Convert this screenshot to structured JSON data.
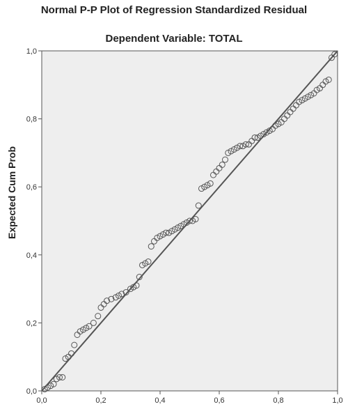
{
  "chart_data": {
    "type": "scatter",
    "title": "Normal P-P Plot of Regression Standardized Residual",
    "subtitle": "Dependent Variable: TOTAL",
    "ylabel": "Expected Cum Prob",
    "xlabel": "",
    "xlim": [
      0,
      1
    ],
    "ylim": [
      0,
      1
    ],
    "x_ticks": [
      "0,0",
      "0,2",
      "0,4",
      "0,6",
      "0,8",
      "1,0"
    ],
    "y_ticks": [
      "0,0",
      "0,2",
      "0,4",
      "0,6",
      "0,8",
      "1,0"
    ],
    "grid": false,
    "reference_line": {
      "from": [
        0,
        0
      ],
      "to": [
        1,
        1
      ]
    },
    "colors": {
      "plot_background": "#eeeeee",
      "marker": "#555555",
      "line": "#555555"
    },
    "series": [
      {
        "values": [
          [
            0.01,
            0.005
          ],
          [
            0.02,
            0.01
          ],
          [
            0.03,
            0.015
          ],
          [
            0.04,
            0.02
          ],
          [
            0.05,
            0.035
          ],
          [
            0.06,
            0.04
          ],
          [
            0.07,
            0.04
          ],
          [
            0.08,
            0.095
          ],
          [
            0.09,
            0.1
          ],
          [
            0.1,
            0.11
          ],
          [
            0.11,
            0.135
          ],
          [
            0.12,
            0.165
          ],
          [
            0.13,
            0.175
          ],
          [
            0.14,
            0.18
          ],
          [
            0.15,
            0.185
          ],
          [
            0.16,
            0.19
          ],
          [
            0.175,
            0.2
          ],
          [
            0.19,
            0.22
          ],
          [
            0.2,
            0.245
          ],
          [
            0.21,
            0.255
          ],
          [
            0.22,
            0.265
          ],
          [
            0.235,
            0.27
          ],
          [
            0.25,
            0.275
          ],
          [
            0.26,
            0.28
          ],
          [
            0.27,
            0.285
          ],
          [
            0.285,
            0.29
          ],
          [
            0.3,
            0.3
          ],
          [
            0.31,
            0.305
          ],
          [
            0.32,
            0.31
          ],
          [
            0.33,
            0.335
          ],
          [
            0.34,
            0.37
          ],
          [
            0.35,
            0.375
          ],
          [
            0.36,
            0.38
          ],
          [
            0.37,
            0.425
          ],
          [
            0.38,
            0.44
          ],
          [
            0.39,
            0.45
          ],
          [
            0.4,
            0.455
          ],
          [
            0.41,
            0.46
          ],
          [
            0.42,
            0.465
          ],
          [
            0.43,
            0.465
          ],
          [
            0.44,
            0.47
          ],
          [
            0.45,
            0.475
          ],
          [
            0.46,
            0.48
          ],
          [
            0.47,
            0.485
          ],
          [
            0.48,
            0.49
          ],
          [
            0.49,
            0.495
          ],
          [
            0.5,
            0.5
          ],
          [
            0.51,
            0.5
          ],
          [
            0.52,
            0.505
          ],
          [
            0.53,
            0.545
          ],
          [
            0.54,
            0.595
          ],
          [
            0.55,
            0.6
          ],
          [
            0.56,
            0.605
          ],
          [
            0.57,
            0.61
          ],
          [
            0.58,
            0.635
          ],
          [
            0.59,
            0.645
          ],
          [
            0.6,
            0.655
          ],
          [
            0.61,
            0.665
          ],
          [
            0.62,
            0.68
          ],
          [
            0.63,
            0.7
          ],
          [
            0.64,
            0.705
          ],
          [
            0.65,
            0.71
          ],
          [
            0.66,
            0.715
          ],
          [
            0.67,
            0.72
          ],
          [
            0.68,
            0.72
          ],
          [
            0.69,
            0.725
          ],
          [
            0.7,
            0.725
          ],
          [
            0.71,
            0.735
          ],
          [
            0.72,
            0.745
          ],
          [
            0.73,
            0.745
          ],
          [
            0.74,
            0.75
          ],
          [
            0.75,
            0.755
          ],
          [
            0.76,
            0.76
          ],
          [
            0.77,
            0.765
          ],
          [
            0.78,
            0.77
          ],
          [
            0.79,
            0.78
          ],
          [
            0.8,
            0.785
          ],
          [
            0.81,
            0.79
          ],
          [
            0.82,
            0.8
          ],
          [
            0.83,
            0.81
          ],
          [
            0.84,
            0.82
          ],
          [
            0.85,
            0.83
          ],
          [
            0.86,
            0.84
          ],
          [
            0.87,
            0.85
          ],
          [
            0.88,
            0.855
          ],
          [
            0.89,
            0.86
          ],
          [
            0.9,
            0.865
          ],
          [
            0.91,
            0.87
          ],
          [
            0.92,
            0.875
          ],
          [
            0.93,
            0.885
          ],
          [
            0.94,
            0.89
          ],
          [
            0.95,
            0.9
          ],
          [
            0.96,
            0.91
          ],
          [
            0.97,
            0.915
          ],
          [
            0.98,
            0.98
          ],
          [
            0.99,
            0.99
          ]
        ]
      }
    ]
  }
}
